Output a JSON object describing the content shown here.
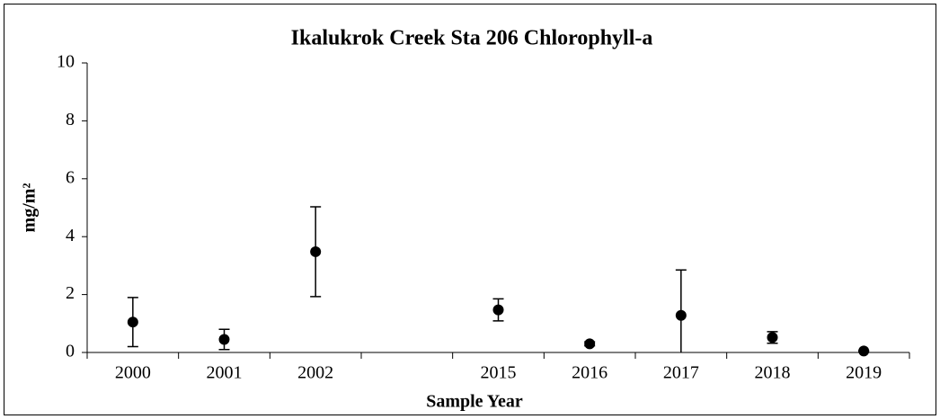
{
  "chart_data": {
    "type": "scatter",
    "title": "Ikalukrok Creek Sta 206 Chlorophyll-a",
    "x_label": "Sample Year",
    "y_label": "mg/m²",
    "categories": [
      "2000",
      "2001",
      "2002",
      null,
      "2015",
      "2016",
      "2017",
      "2018",
      "2019"
    ],
    "values": [
      1.05,
      0.45,
      3.48,
      null,
      1.47,
      0.3,
      1.28,
      0.52,
      0.05
    ],
    "errors": [
      0.85,
      0.35,
      1.55,
      null,
      0.38,
      0.07,
      1.57,
      0.2,
      0.02
    ],
    "color": "#000000",
    "ylim": [
      0,
      10
    ],
    "yticks": [
      0,
      2,
      4,
      6,
      8,
      10
    ],
    "grid": false
  }
}
